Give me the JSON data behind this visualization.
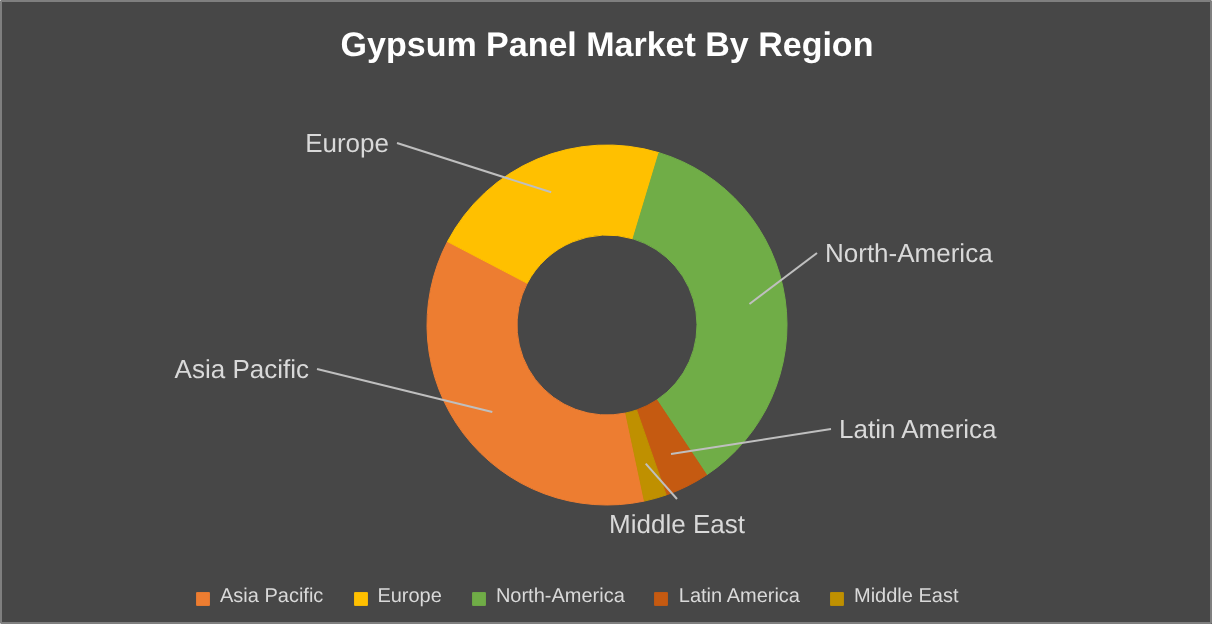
{
  "chart_data": {
    "type": "donut",
    "title": "Gypsum Panel Market By Region",
    "categories": [
      "Asia Pacific",
      "Europe",
      "North-America",
      "Latin America",
      "Middle East"
    ],
    "values": [
      36,
      22,
      36,
      4,
      2
    ],
    "colors": [
      "#ed7d31",
      "#ffc000",
      "#70ad47",
      "#c55a11",
      "#bf9000"
    ],
    "legend": "bottom"
  }
}
